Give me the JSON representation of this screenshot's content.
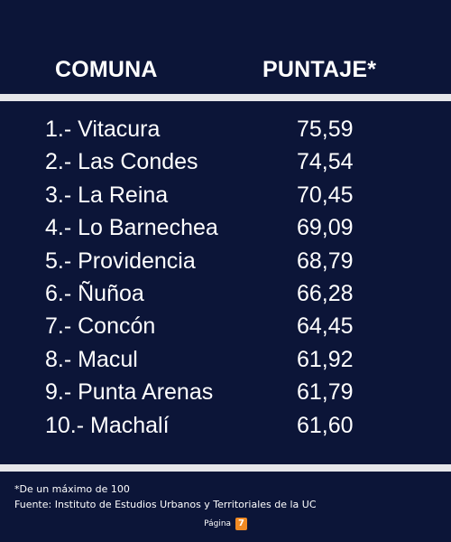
{
  "chart_data": {
    "type": "table",
    "columns": [
      "COMUNA",
      "PUNTAJE*"
    ],
    "rows": [
      {
        "comuna": "1.- Vitacura",
        "puntaje": "75,59"
      },
      {
        "comuna": "2.- Las Condes",
        "puntaje": "74,54"
      },
      {
        "comuna": "3.- La Reina",
        "puntaje": "70,45"
      },
      {
        "comuna": "4.- Lo Barnechea",
        "puntaje": "69,09"
      },
      {
        "comuna": "5.- Providencia",
        "puntaje": "68,79"
      },
      {
        "comuna": "6.- Ñuñoa",
        "puntaje": "66,28"
      },
      {
        "comuna": "7.- Concón",
        "puntaje": "64,45"
      },
      {
        "comuna": "8.- Macul",
        "puntaje": "61,92"
      },
      {
        "comuna": "9.- Punta Arenas",
        "puntaje": "61,79"
      },
      {
        "comuna": "10.- Machalí",
        "puntaje": "61,60"
      }
    ]
  },
  "footer": {
    "note": "*De un máximo de 100",
    "source": "Fuente: Instituto de Estudios Urbanos y Territoriales de la UC"
  },
  "brand": {
    "text": "Página",
    "badge": "7"
  },
  "colors": {
    "background": "#0c1538",
    "divider": "#e6e6ea",
    "brand_accent": "#f08a24"
  }
}
